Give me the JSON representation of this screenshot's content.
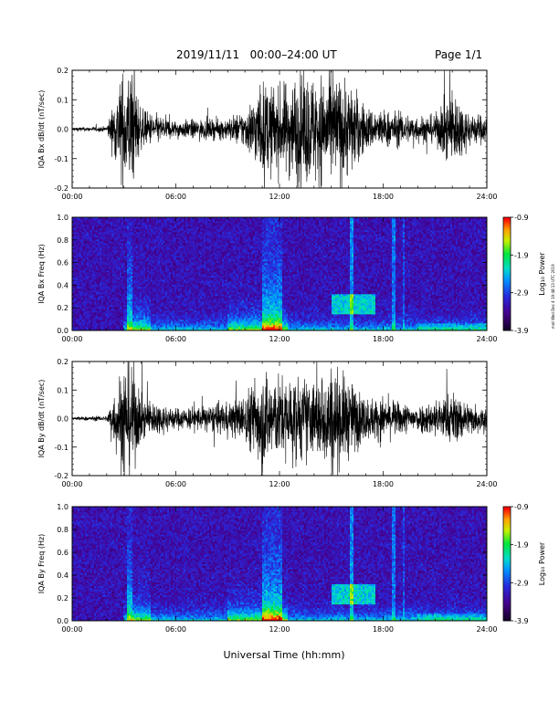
{
  "header": {
    "title": "2019/11/11   00:00–24:00 UT",
    "page": "Page 1/1"
  },
  "footer": {
    "stamp": "mot Wed Dec 4 19:48:13 UTC 2019"
  },
  "chart_data": [
    {
      "type": "line",
      "name": "bx-waveform",
      "ylabel": "IQA Bx dB/dt (nT/sec)",
      "xlabel": "",
      "xlim": [
        0,
        24
      ],
      "ylim": [
        -0.2,
        0.2
      ],
      "xticks": [
        "00:00",
        "06:00",
        "12:00",
        "18:00",
        "24:00"
      ],
      "yticks": [
        "-0.2",
        "-0.1",
        "0.0",
        "0.1",
        "0.2"
      ],
      "envelope_hours": [
        0,
        1,
        2,
        3,
        3.5,
        4,
        5,
        6,
        7,
        8,
        9,
        10,
        11,
        12,
        13,
        14,
        15,
        16,
        17,
        18,
        19,
        20,
        21,
        22,
        23,
        24
      ],
      "envelope_amplitude": [
        0.008,
        0.008,
        0.01,
        0.22,
        0.22,
        0.07,
        0.05,
        0.03,
        0.035,
        0.035,
        0.04,
        0.07,
        0.17,
        0.15,
        0.2,
        0.2,
        0.2,
        0.18,
        0.08,
        0.07,
        0.06,
        0.05,
        0.05,
        0.15,
        0.06,
        0.05
      ]
    },
    {
      "type": "heatmap",
      "name": "bx-spectrogram",
      "ylabel": "IQA Bx Freq (Hz)",
      "xlim": [
        0,
        24
      ],
      "ylim": [
        0,
        1.0
      ],
      "xticks": [
        "00:00",
        "06:00",
        "12:00",
        "18:00",
        "24:00"
      ],
      "yticks": [
        "0.0",
        "0.2",
        "0.4",
        "0.6",
        "0.8",
        "1.0"
      ],
      "colorbar": {
        "label": "Log₁₀ Power",
        "range": [
          -3.9,
          -0.9
        ],
        "ticks": [
          "-0.9",
          "-1.9",
          "-2.9",
          "-3.9"
        ]
      }
    },
    {
      "type": "line",
      "name": "by-waveform",
      "ylabel": "IQA By dB/dt (nT/sec)",
      "xlim": [
        0,
        24
      ],
      "ylim": [
        -0.2,
        0.2
      ],
      "xticks": [
        "00:00",
        "06:00",
        "12:00",
        "18:00",
        "24:00"
      ],
      "yticks": [
        "-0.2",
        "-0.1",
        "0.0",
        "0.1",
        "0.2"
      ],
      "envelope_hours": [
        0,
        1,
        2,
        3,
        3.5,
        4,
        5,
        6,
        7,
        8,
        9,
        10,
        11,
        12,
        13,
        14,
        15,
        16,
        17,
        18,
        19,
        20,
        21,
        22,
        23,
        24
      ],
      "envelope_amplitude": [
        0.007,
        0.008,
        0.01,
        0.22,
        0.2,
        0.08,
        0.06,
        0.04,
        0.045,
        0.05,
        0.06,
        0.09,
        0.2,
        0.15,
        0.16,
        0.14,
        0.2,
        0.15,
        0.08,
        0.08,
        0.06,
        0.05,
        0.07,
        0.1,
        0.06,
        0.05
      ]
    },
    {
      "type": "heatmap",
      "name": "by-spectrogram",
      "ylabel": "IQA By Freq (Hz)",
      "xlim": [
        0,
        24
      ],
      "ylim": [
        0,
        1.0
      ],
      "xticks": [
        "00:00",
        "06:00",
        "12:00",
        "18:00",
        "24:00"
      ],
      "yticks": [
        "0.0",
        "0.2",
        "0.4",
        "0.6",
        "0.8",
        "1.0"
      ],
      "colorbar": {
        "label": "Log₁₀ Power",
        "range": [
          -3.9,
          -0.9
        ],
        "ticks": [
          "-0.9",
          "-1.9",
          "-2.9",
          "-3.9"
        ]
      }
    }
  ],
  "x_axis_title": "Universal Time (hh:mm)"
}
